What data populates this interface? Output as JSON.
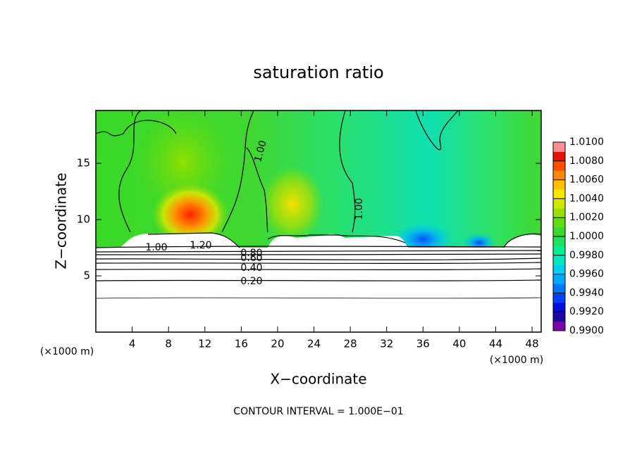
{
  "chart_data": {
    "type": "contour",
    "title": "saturation ratio",
    "x_label": "X−coordinate",
    "y_label": "Z−coordinate",
    "x_unit": "(×1000 m)",
    "y_unit": "(×1000 m)",
    "footer": "CONTOUR INTERVAL = 1.000E−01",
    "xlim": [
      0,
      49
    ],
    "ylim": [
      0,
      19.7
    ],
    "xticks": [
      4,
      8,
      12,
      16,
      20,
      24,
      28,
      32,
      36,
      40,
      44,
      48
    ],
    "yticks": [
      5,
      10,
      15
    ],
    "contour_labels": [
      {
        "value": 0.2,
        "label": "0.20"
      },
      {
        "value": 0.4,
        "label": "0.40"
      },
      {
        "value": 0.6,
        "label": "0.60"
      },
      {
        "value": 0.8,
        "label": "0.80"
      },
      {
        "value": 1,
        "label": "1.00"
      },
      {
        "value": 1.2,
        "label": "1.20"
      },
      {
        "value": 1,
        "label": "1.00"
      },
      {
        "value": 1,
        "label": "1.00"
      }
    ],
    "colorbar": {
      "lim": [
        0.99,
        1.01
      ],
      "ticks": [
        {
          "value": 0.99,
          "label": "0.9900"
        },
        {
          "value": 0.992,
          "label": "0.9920"
        },
        {
          "value": 0.994,
          "label": "0.9940"
        },
        {
          "value": 0.996,
          "label": "0.9960"
        },
        {
          "value": 0.998,
          "label": "0.9980"
        },
        {
          "value": 1,
          "label": "1.0000"
        },
        {
          "value": 1.002,
          "label": "1.0020"
        },
        {
          "value": 1.004,
          "label": "1.0040"
        },
        {
          "value": 1.006,
          "label": "1.0060"
        },
        {
          "value": 1.008,
          "label": "1.0080"
        },
        {
          "value": 1.01,
          "label": "1.0100"
        }
      ],
      "colors": [
        "#7a00a8",
        "#1a0aa0",
        "#0010d8",
        "#0040ff",
        "#0078ff",
        "#00a8ff",
        "#00d0f0",
        "#00e8c0",
        "#00f090",
        "#20e060",
        "#38d830",
        "#60dc10",
        "#98e000",
        "#d0e800",
        "#f8e800",
        "#ffc000",
        "#ff8800",
        "#ff5000",
        "#e81000",
        "#ff9090"
      ]
    }
  }
}
